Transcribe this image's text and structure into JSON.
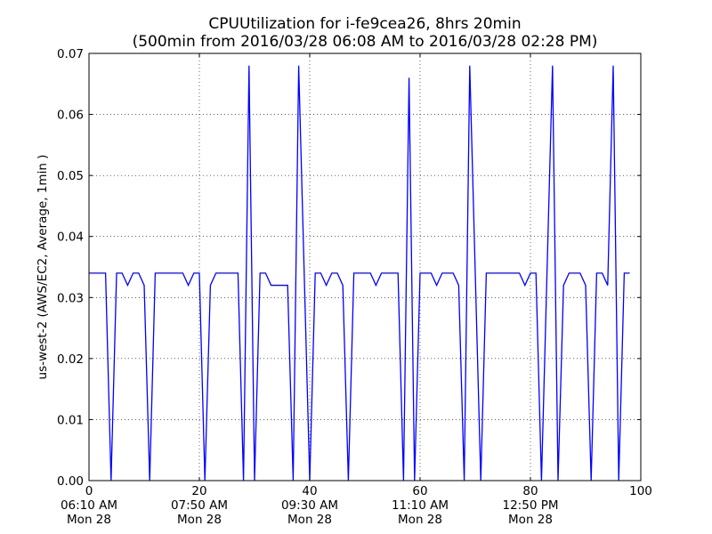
{
  "chart_data": {
    "type": "line",
    "title": "CPUUtilization for i-fe9cea26, 8hrs 20min",
    "subtitle": "(500min from 2016/03/28 06:08 AM to 2016/03/28 02:28 PM)",
    "xlabel": "",
    "ylabel": "us-west-2 (AWS/EC2, Average, 1min )",
    "xlim": [
      0,
      100
    ],
    "ylim": [
      0,
      0.07
    ],
    "grid": true,
    "legend": "none",
    "line_color": "#0000ff",
    "x_ticks": [
      {
        "value": 0,
        "lines": [
          "0",
          "06:10 AM",
          "Mon 28"
        ]
      },
      {
        "value": 20,
        "lines": [
          "20",
          "07:50 AM",
          "Mon 28"
        ]
      },
      {
        "value": 40,
        "lines": [
          "40",
          "09:30 AM",
          "Mon 28"
        ]
      },
      {
        "value": 60,
        "lines": [
          "60",
          "11:10 AM",
          "Mon 28"
        ]
      },
      {
        "value": 80,
        "lines": [
          "80",
          "12:50 PM",
          "Mon 28"
        ]
      },
      {
        "value": 100,
        "lines": [
          "100",
          "",
          ""
        ]
      }
    ],
    "y_ticks": [
      {
        "value": 0,
        "label": "0.00"
      },
      {
        "value": 0.01,
        "label": "0.01"
      },
      {
        "value": 0.02,
        "label": "0.02"
      },
      {
        "value": 0.03,
        "label": "0.03"
      },
      {
        "value": 0.04,
        "label": "0.04"
      },
      {
        "value": 0.05,
        "label": "0.05"
      },
      {
        "value": 0.06,
        "label": "0.06"
      },
      {
        "value": 0.07,
        "label": "0.07"
      }
    ],
    "series": [
      {
        "x": [
          0,
          1,
          2,
          3,
          4,
          5,
          6,
          7,
          8,
          9,
          10,
          11,
          12,
          13,
          14,
          15,
          16,
          17,
          18,
          19,
          20,
          21,
          22,
          23,
          24,
          25,
          26,
          27,
          28,
          29,
          30,
          31,
          32,
          33,
          34,
          35,
          36,
          37,
          38,
          39,
          40,
          41,
          42,
          43,
          44,
          45,
          46,
          47,
          48,
          49,
          50,
          51,
          52,
          53,
          54,
          55,
          56,
          57,
          58,
          59,
          60,
          61,
          62,
          63,
          64,
          65,
          66,
          67,
          68,
          69,
          70,
          71,
          72,
          73,
          74,
          75,
          76,
          77,
          78,
          79,
          80,
          81,
          82,
          83,
          84,
          85,
          86,
          87,
          88,
          89,
          90,
          91,
          92,
          93,
          94,
          95,
          96,
          97,
          98
        ],
        "values": [
          0.034,
          0.034,
          0.034,
          0.034,
          0.0,
          0.034,
          0.034,
          0.032,
          0.034,
          0.034,
          0.032,
          0.0,
          0.034,
          0.034,
          0.034,
          0.034,
          0.034,
          0.034,
          0.032,
          0.034,
          0.034,
          0.0,
          0.032,
          0.034,
          0.034,
          0.034,
          0.034,
          0.034,
          0.0,
          0.068,
          0.0,
          0.034,
          0.034,
          0.032,
          0.032,
          0.032,
          0.032,
          0.0,
          0.068,
          0.034,
          0.0,
          0.034,
          0.034,
          0.032,
          0.034,
          0.034,
          0.032,
          0.0,
          0.034,
          0.034,
          0.034,
          0.034,
          0.032,
          0.034,
          0.034,
          0.034,
          0.034,
          0.0,
          0.066,
          0.0,
          0.034,
          0.034,
          0.034,
          0.032,
          0.034,
          0.034,
          0.034,
          0.032,
          0.0,
          0.068,
          0.034,
          0.0,
          0.034,
          0.034,
          0.034,
          0.034,
          0.034,
          0.034,
          0.034,
          0.032,
          0.034,
          0.034,
          0.0,
          0.034,
          0.068,
          0.0,
          0.032,
          0.034,
          0.034,
          0.034,
          0.032,
          0.0,
          0.034,
          0.034,
          0.032,
          0.068,
          0.0,
          0.034,
          0.034
        ]
      }
    ]
  }
}
